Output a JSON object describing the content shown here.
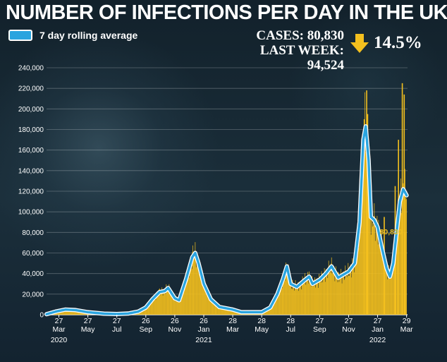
{
  "header": {
    "title": "NUMBER OF INFECTIONS PER DAY IN THE UK",
    "legend_label": "7 day rolling average",
    "cases": "CASES: 80,830",
    "last_week": "LAST WEEK: 94,524",
    "change_pct": "14.5%",
    "change_icon": "down-arrow-icon"
  },
  "colors": {
    "background": "#152530",
    "bars": "#f4c01e",
    "rolling_avg": "#2aa4df",
    "annotation": "#f4c01e"
  },
  "chart_data": {
    "type": "bar",
    "title": "NUMBER OF INFECTIONS PER DAY IN THE UK",
    "ylim": [
      0,
      240000
    ],
    "y_ticks": [
      0,
      20000,
      40000,
      60000,
      80000,
      100000,
      120000,
      140000,
      160000,
      180000,
      200000,
      220000,
      240000
    ],
    "y_tick_labels": [
      "0",
      "20,000",
      "40,000",
      "60,000",
      "80,000",
      "100,000",
      "120,000",
      "140,000",
      "160,000",
      "180,000",
      "200,000",
      "220,000",
      "240,000"
    ],
    "x_range": [
      "2020-03-01",
      "2022-03-31"
    ],
    "x_ticks": [
      {
        "date": "2020-03-27",
        "day": "27",
        "month": "Mar"
      },
      {
        "date": "2020-05-27",
        "day": "27",
        "month": "May"
      },
      {
        "date": "2020-07-27",
        "day": "27",
        "month": "Jul"
      },
      {
        "date": "2020-09-26",
        "day": "26",
        "month": "Sep"
      },
      {
        "date": "2020-11-26",
        "day": "26",
        "month": "Nov"
      },
      {
        "date": "2021-01-26",
        "day": "26",
        "month": "Jan"
      },
      {
        "date": "2021-03-28",
        "day": "28",
        "month": "Mar"
      },
      {
        "date": "2021-05-28",
        "day": "28",
        "month": "May"
      },
      {
        "date": "2021-07-28",
        "day": "28",
        "month": "Jul"
      },
      {
        "date": "2021-09-27",
        "day": "27",
        "month": "Sep"
      },
      {
        "date": "2021-11-27",
        "day": "27",
        "month": "Nov"
      },
      {
        "date": "2022-01-27",
        "day": "27",
        "month": "Jan"
      },
      {
        "date": "2022-03-29",
        "day": "29",
        "month": "Mar"
      }
    ],
    "year_labels": [
      {
        "date": "2020-03-27",
        "label": "2020"
      },
      {
        "date": "2021-01-26",
        "label": "2021"
      },
      {
        "date": "2022-01-27",
        "label": "2022"
      }
    ],
    "series": [
      {
        "name": "7 day rolling average",
        "points": [
          [
            "2020-03-01",
            500
          ],
          [
            "2020-03-20",
            3000
          ],
          [
            "2020-04-10",
            5000
          ],
          [
            "2020-05-01",
            4500
          ],
          [
            "2020-05-27",
            2500
          ],
          [
            "2020-06-30",
            1000
          ],
          [
            "2020-07-27",
            700
          ],
          [
            "2020-08-20",
            1200
          ],
          [
            "2020-09-10",
            3000
          ],
          [
            "2020-09-26",
            7000
          ],
          [
            "2020-10-10",
            15000
          ],
          [
            "2020-10-25",
            22000
          ],
          [
            "2020-11-05",
            23000
          ],
          [
            "2020-11-12",
            26000
          ],
          [
            "2020-11-26",
            16000
          ],
          [
            "2020-12-05",
            14000
          ],
          [
            "2020-12-20",
            35000
          ],
          [
            "2021-01-02",
            56000
          ],
          [
            "2021-01-08",
            60000
          ],
          [
            "2021-01-15",
            50000
          ],
          [
            "2021-01-26",
            30000
          ],
          [
            "2021-02-10",
            15000
          ],
          [
            "2021-02-28",
            7500
          ],
          [
            "2021-03-28",
            5000
          ],
          [
            "2021-04-15",
            2500
          ],
          [
            "2021-05-28",
            2500
          ],
          [
            "2021-06-15",
            7000
          ],
          [
            "2021-06-30",
            20000
          ],
          [
            "2021-07-12",
            35000
          ],
          [
            "2021-07-20",
            47000
          ],
          [
            "2021-07-28",
            30000
          ],
          [
            "2021-08-10",
            27000
          ],
          [
            "2021-08-25",
            33000
          ],
          [
            "2021-09-05",
            37000
          ],
          [
            "2021-09-12",
            30000
          ],
          [
            "2021-09-27",
            34000
          ],
          [
            "2021-10-10",
            40000
          ],
          [
            "2021-10-22",
            47000
          ],
          [
            "2021-11-05",
            36000
          ],
          [
            "2021-11-27",
            42000
          ],
          [
            "2021-12-10",
            50000
          ],
          [
            "2021-12-20",
            90000
          ],
          [
            "2021-12-28",
            170000
          ],
          [
            "2022-01-02",
            183000
          ],
          [
            "2022-01-08",
            150000
          ],
          [
            "2022-01-13",
            95000
          ],
          [
            "2022-01-20",
            92000
          ],
          [
            "2022-01-27",
            85000
          ],
          [
            "2022-02-05",
            65000
          ],
          [
            "2022-02-15",
            45000
          ],
          [
            "2022-02-22",
            37000
          ],
          [
            "2022-03-01",
            50000
          ],
          [
            "2022-03-08",
            80000
          ],
          [
            "2022-03-15",
            110000
          ],
          [
            "2022-03-22",
            122000
          ],
          [
            "2022-03-29",
            116000
          ]
        ]
      }
    ],
    "bar_spikes": [
      [
        "2021-12-30",
        190000
      ],
      [
        "2022-01-04",
        218000
      ],
      [
        "2022-01-06",
        195000
      ],
      [
        "2022-02-10",
        95000
      ],
      [
        "2022-03-05",
        125000
      ],
      [
        "2022-03-12",
        170000
      ],
      [
        "2022-03-20",
        225000
      ],
      [
        "2022-03-24",
        214000
      ],
      [
        "2022-03-26",
        80000
      ]
    ],
    "annotation": {
      "text": "80,830",
      "date": "2022-03-29",
      "value": 80830
    }
  }
}
